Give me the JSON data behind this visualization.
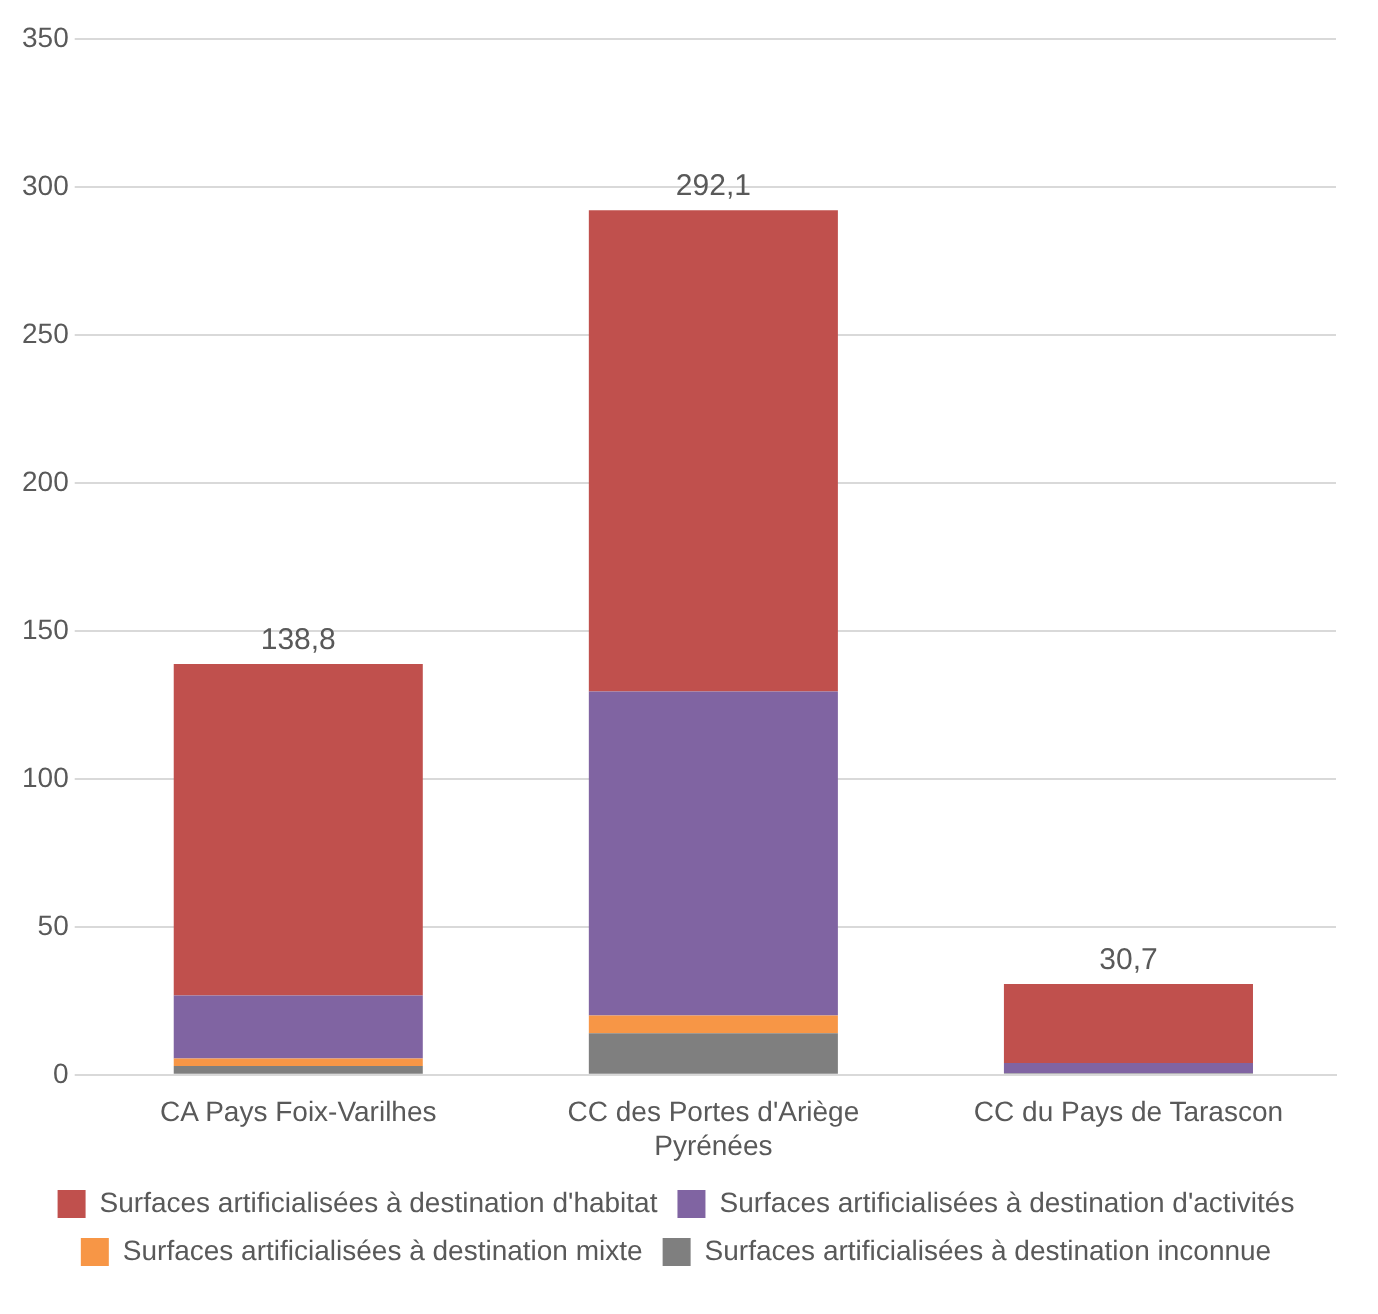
{
  "chart_data": {
    "type": "bar",
    "stacked": true,
    "categories": [
      "CA Pays Foix-Varilhes",
      "CC des Portes d'Ariège Pyrénées",
      "CC du Pays de Tarascon"
    ],
    "series": [
      {
        "name": "Surfaces artificialisées à destination inconnue",
        "color": "#7f7f7f",
        "values": [
          3,
          14,
          0.5
        ]
      },
      {
        "name": "Surfaces artificialisées à destination mixte",
        "color": "#f79646",
        "values": [
          2.5,
          6,
          0
        ]
      },
      {
        "name": "Surfaces artificialisées à destination d'activités",
        "color": "#8064a2",
        "values": [
          21.3,
          109.5,
          3.5
        ]
      },
      {
        "name": "Surfaces artificialisées à destination d'habitat",
        "color": "#c0504d",
        "values": [
          112,
          162.6,
          26.7
        ]
      }
    ],
    "totals": [
      "138,8",
      "292,1",
      "30,7"
    ],
    "ylim": [
      0,
      350
    ],
    "yticks": [
      0,
      50,
      100,
      150,
      200,
      250,
      300,
      350
    ],
    "grid": "y",
    "legend": "bottom"
  }
}
